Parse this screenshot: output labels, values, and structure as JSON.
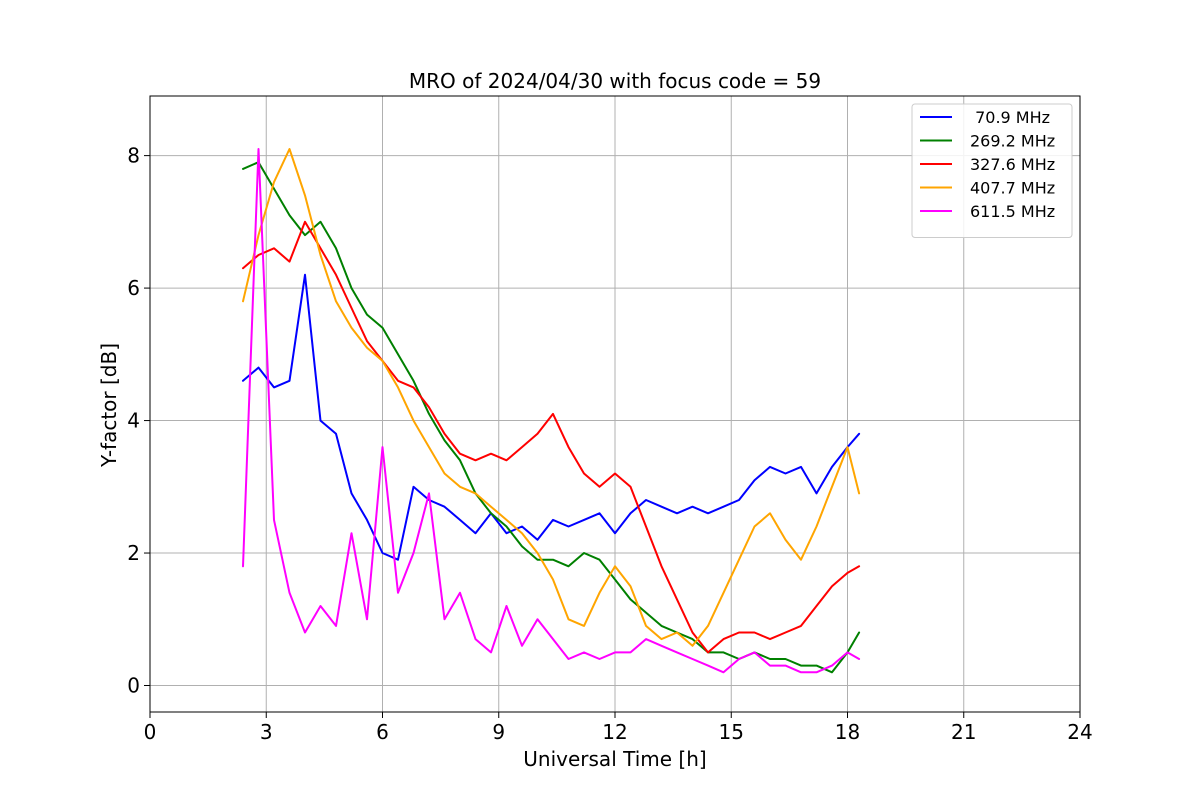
{
  "chart_data": {
    "type": "line",
    "title": "MRO of 2024/04/30 with focus code = 59",
    "xlabel": "Universal Time [h]",
    "ylabel": "Y-factor [dB]",
    "xlim": [
      0,
      24
    ],
    "ylim": [
      -0.4,
      8.9
    ],
    "x_ticks": [
      "0",
      "3",
      "6",
      "9",
      "12",
      "15",
      "18",
      "21",
      "24"
    ],
    "y_ticks": [
      "0",
      "2",
      "4",
      "6",
      "8"
    ],
    "grid": true,
    "legend_position": "top-right",
    "series": [
      {
        "name": " 70.9 MHz",
        "color": "#0000ff",
        "x": [
          2.4,
          2.8,
          3.2,
          3.6,
          4.0,
          4.4,
          4.8,
          5.2,
          5.6,
          6.0,
          6.4,
          6.8,
          7.2,
          7.6,
          8.0,
          8.4,
          8.8,
          9.2,
          9.6,
          10.0,
          10.4,
          10.8,
          11.2,
          11.6,
          12.0,
          12.4,
          12.8,
          13.2,
          13.6,
          14.0,
          14.4,
          14.8,
          15.2,
          15.6,
          16.0,
          16.4,
          16.8,
          17.2,
          17.6,
          18.0,
          18.3
        ],
        "y": [
          4.6,
          4.8,
          4.5,
          4.6,
          6.2,
          4.0,
          3.8,
          2.9,
          2.5,
          2.0,
          1.9,
          3.0,
          2.8,
          2.7,
          2.5,
          2.3,
          2.6,
          2.3,
          2.4,
          2.2,
          2.5,
          2.4,
          2.5,
          2.6,
          2.3,
          2.6,
          2.8,
          2.7,
          2.6,
          2.7,
          2.6,
          2.7,
          2.8,
          3.1,
          3.3,
          3.2,
          3.3,
          2.9,
          3.3,
          3.6,
          3.8
        ]
      },
      {
        "name": "269.2 MHz",
        "color": "#008000",
        "x": [
          2.4,
          2.8,
          3.2,
          3.6,
          4.0,
          4.4,
          4.8,
          5.2,
          5.6,
          6.0,
          6.4,
          6.8,
          7.2,
          7.6,
          8.0,
          8.4,
          8.8,
          9.2,
          9.6,
          10.0,
          10.4,
          10.8,
          11.2,
          11.6,
          12.0,
          12.4,
          12.8,
          13.2,
          13.6,
          14.0,
          14.4,
          14.8,
          15.2,
          15.6,
          16.0,
          16.4,
          16.8,
          17.2,
          17.6,
          18.0,
          18.3
        ],
        "y": [
          7.8,
          7.9,
          7.5,
          7.1,
          6.8,
          7.0,
          6.6,
          6.0,
          5.6,
          5.4,
          5.0,
          4.6,
          4.1,
          3.7,
          3.4,
          2.9,
          2.6,
          2.4,
          2.1,
          1.9,
          1.9,
          1.8,
          2.0,
          1.9,
          1.6,
          1.3,
          1.1,
          0.9,
          0.8,
          0.7,
          0.5,
          0.5,
          0.4,
          0.5,
          0.4,
          0.4,
          0.3,
          0.3,
          0.2,
          0.5,
          0.8
        ]
      },
      {
        "name": "327.6 MHz",
        "color": "#ff0000",
        "x": [
          2.4,
          2.8,
          3.2,
          3.6,
          4.0,
          4.4,
          4.8,
          5.2,
          5.6,
          6.0,
          6.4,
          6.8,
          7.2,
          7.6,
          8.0,
          8.4,
          8.8,
          9.2,
          9.6,
          10.0,
          10.4,
          10.8,
          11.2,
          11.6,
          12.0,
          12.4,
          12.8,
          13.2,
          13.6,
          14.0,
          14.4,
          14.8,
          15.2,
          15.6,
          16.0,
          16.4,
          16.8,
          17.2,
          17.6,
          18.0,
          18.3
        ],
        "y": [
          6.3,
          6.5,
          6.6,
          6.4,
          7.0,
          6.6,
          6.2,
          5.7,
          5.2,
          4.9,
          4.6,
          4.5,
          4.2,
          3.8,
          3.5,
          3.4,
          3.5,
          3.4,
          3.6,
          3.8,
          4.1,
          3.6,
          3.2,
          3.0,
          3.2,
          3.0,
          2.4,
          1.8,
          1.3,
          0.8,
          0.5,
          0.7,
          0.8,
          0.8,
          0.7,
          0.8,
          0.9,
          1.2,
          1.5,
          1.7,
          1.8
        ]
      },
      {
        "name": "407.7 MHz",
        "color": "#ffa500",
        "x": [
          2.4,
          2.8,
          3.2,
          3.6,
          4.0,
          4.4,
          4.8,
          5.2,
          5.6,
          6.0,
          6.4,
          6.8,
          7.2,
          7.6,
          8.0,
          8.4,
          8.8,
          9.2,
          9.6,
          10.0,
          10.4,
          10.8,
          11.2,
          11.6,
          12.0,
          12.4,
          12.8,
          13.2,
          13.6,
          14.0,
          14.4,
          14.8,
          15.2,
          15.6,
          16.0,
          16.4,
          16.8,
          17.2,
          17.6,
          18.0,
          18.3
        ],
        "y": [
          5.8,
          6.8,
          7.6,
          8.1,
          7.4,
          6.5,
          5.8,
          5.4,
          5.1,
          4.9,
          4.5,
          4.0,
          3.6,
          3.2,
          3.0,
          2.9,
          2.7,
          2.5,
          2.3,
          2.0,
          1.6,
          1.0,
          0.9,
          1.4,
          1.8,
          1.5,
          0.9,
          0.7,
          0.8,
          0.6,
          0.9,
          1.4,
          1.9,
          2.4,
          2.6,
          2.2,
          1.9,
          2.4,
          3.0,
          3.6,
          2.9
        ]
      },
      {
        "name": "611.5 MHz",
        "color": "#ff00ff",
        "x": [
          2.4,
          2.8,
          3.2,
          3.6,
          4.0,
          4.4,
          4.8,
          5.2,
          5.6,
          6.0,
          6.4,
          6.8,
          7.2,
          7.6,
          8.0,
          8.4,
          8.8,
          9.2,
          9.6,
          10.0,
          10.4,
          10.8,
          11.2,
          11.6,
          12.0,
          12.4,
          12.8,
          13.2,
          13.6,
          14.0,
          14.4,
          14.8,
          15.2,
          15.6,
          16.0,
          16.4,
          16.8,
          17.2,
          17.6,
          18.0,
          18.3
        ],
        "y": [
          1.8,
          8.1,
          2.5,
          1.4,
          0.8,
          1.2,
          0.9,
          2.3,
          1.0,
          3.6,
          1.4,
          2.0,
          2.9,
          1.0,
          1.4,
          0.7,
          0.5,
          1.2,
          0.6,
          1.0,
          0.7,
          0.4,
          0.5,
          0.4,
          0.5,
          0.5,
          0.7,
          0.6,
          0.5,
          0.4,
          0.3,
          0.2,
          0.4,
          0.5,
          0.3,
          0.3,
          0.2,
          0.2,
          0.3,
          0.5,
          0.4
        ]
      }
    ]
  }
}
